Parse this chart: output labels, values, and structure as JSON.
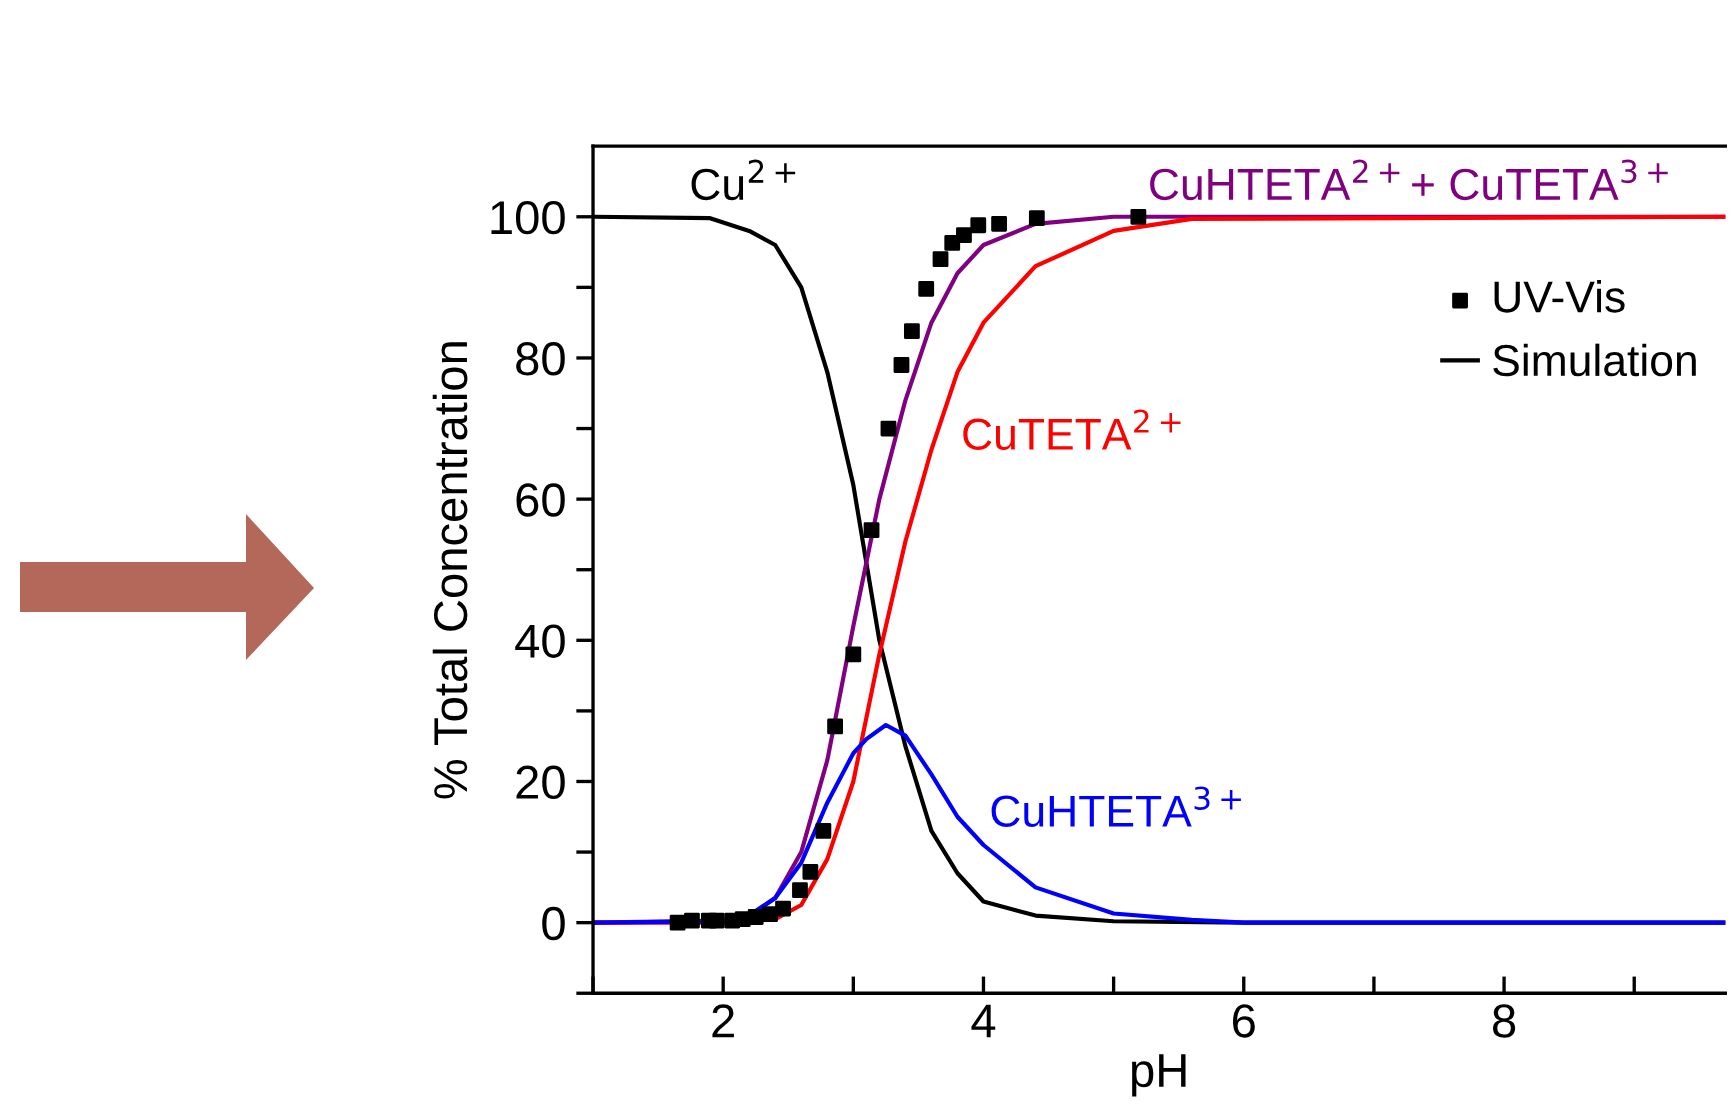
{
  "chart_data": {
    "type": "line",
    "xlabel": "pH",
    "ylabel": "% Total Concentration",
    "xlim": [
      1,
      9.7
    ],
    "ylim": [
      -10,
      110
    ],
    "xticks": [
      {
        "value": 1,
        "label": null
      },
      2,
      {
        "value": 3,
        "label": null
      },
      4,
      {
        "value": 5,
        "label": null
      },
      6,
      {
        "value": 7,
        "label": null
      },
      8,
      {
        "value": 9,
        "label": null
      }
    ],
    "yticks": [
      {
        "value": -10,
        "label": null
      },
      0,
      {
        "value": 10,
        "label": null
      },
      20,
      {
        "value": 30,
        "label": null
      },
      40,
      {
        "value": 50,
        "label": null
      },
      60,
      {
        "value": 70,
        "label": null
      },
      80,
      {
        "value": 90,
        "label": null
      },
      100
    ],
    "grid": false,
    "legend": "right",
    "marker": "none",
    "line_style": "solid",
    "series": [
      {
        "name": "UV-Vis",
        "type": "scatter",
        "marker": "square",
        "color": "#000000",
        "x": [
          1.65,
          1.76,
          1.89,
          1.95,
          2.07,
          2.15,
          2.25,
          2.36,
          2.46,
          2.59,
          2.67,
          2.77,
          2.86,
          3.0,
          3.14,
          3.27,
          3.37,
          3.45,
          3.56,
          3.67,
          3.76,
          3.85,
          3.96,
          4.12,
          4.41,
          5.19
        ],
        "values": [
          0,
          0.3,
          0.3,
          0.3,
          0.3,
          0.5,
          0.8,
          1.2,
          2,
          4.6,
          7.2,
          13,
          27.8,
          38,
          55.6,
          70,
          79,
          83.8,
          89.8,
          94,
          96.3,
          97.4,
          98.8,
          99,
          99.8,
          100
        ]
      },
      {
        "name": "Simulation",
        "color": "#000000",
        "x": [
          1,
          1.9,
          2.2,
          2.4,
          2.6,
          2.8,
          3.0,
          3.2,
          3.4,
          3.6,
          3.8,
          4.0,
          4.4,
          5,
          6,
          9.7
        ],
        "values": [
          100,
          99.8,
          98,
          96,
          90,
          78,
          62,
          40,
          25,
          13,
          7,
          3,
          1,
          0.2,
          0,
          0
        ]
      },
      {
        "color": "#800080",
        "x": [
          1,
          2,
          2.2,
          2.4,
          2.6,
          2.8,
          3.0,
          3.2,
          3.4,
          3.6,
          3.8,
          4.0,
          4.4,
          5,
          9.7
        ],
        "values": [
          0,
          0.3,
          1,
          3.5,
          10,
          23,
          42,
          60,
          74,
          85,
          92,
          96,
          99,
          100,
          100
        ]
      },
      {
        "color": "#ff0000",
        "x": [
          1,
          2,
          2.4,
          2.6,
          2.8,
          3.0,
          3.2,
          3.4,
          3.6,
          3.8,
          4.0,
          4.4,
          5,
          5.6,
          9.7
        ],
        "values": [
          0,
          0,
          0.5,
          2.5,
          9,
          20,
          38,
          54,
          67,
          78,
          85,
          93,
          98,
          99.7,
          100
        ]
      },
      {
        "color": "#0000ff",
        "x": [
          1,
          2,
          2.2,
          2.4,
          2.6,
          2.8,
          3.0,
          3.1,
          3.25,
          3.4,
          3.6,
          3.8,
          4.0,
          4.4,
          5,
          5.6,
          6,
          9.7
        ],
        "values": [
          0,
          0.2,
          1,
          3.5,
          8.5,
          17,
          24,
          26,
          28,
          26.5,
          21,
          15,
          11,
          5,
          1.3,
          0.4,
          0,
          0
        ]
      }
    ],
    "annotations": [
      "Cu$^{2+}$",
      "CuHTETA$^{2+}$+ CuTETA$^{3+}$",
      "CuTETA$^{2+}$",
      "CuHTETA$^{3+}$"
    ]
  }
}
